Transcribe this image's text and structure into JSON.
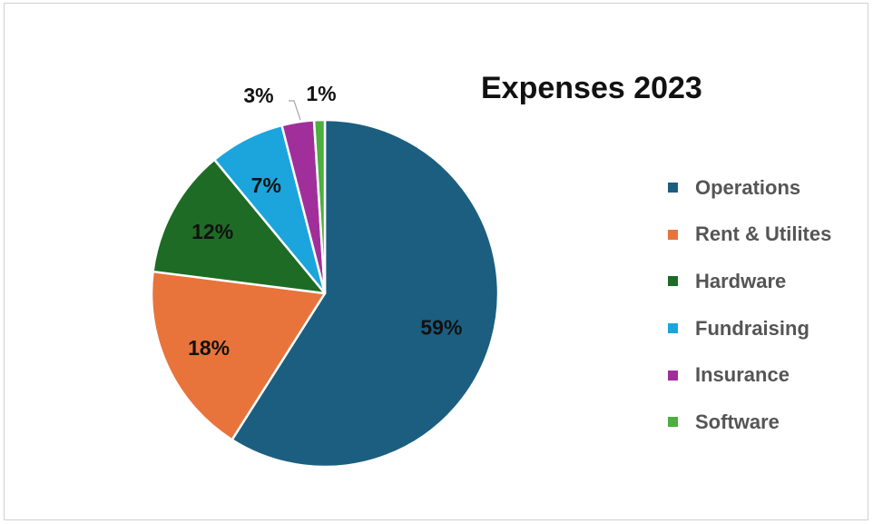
{
  "chart_data": {
    "type": "pie",
    "title": "Expenses 2023",
    "legend_position": "right",
    "slices": [
      {
        "name": "Operations",
        "value": 59,
        "label": "59%",
        "color": "#1b5e80"
      },
      {
        "name": "Rent & Utilites",
        "value": 18,
        "label": "18%",
        "color": "#e8743b"
      },
      {
        "name": "Hardware",
        "value": 12,
        "label": "12%",
        "color": "#1e6b25"
      },
      {
        "name": "Fundraising",
        "value": 7,
        "label": "7%",
        "color": "#1ba5dc"
      },
      {
        "name": "Insurance",
        "value": 3,
        "label": "3%",
        "color": "#a12f9b"
      },
      {
        "name": "Software",
        "value": 1,
        "label": "1%",
        "color": "#4caf3f"
      }
    ]
  }
}
